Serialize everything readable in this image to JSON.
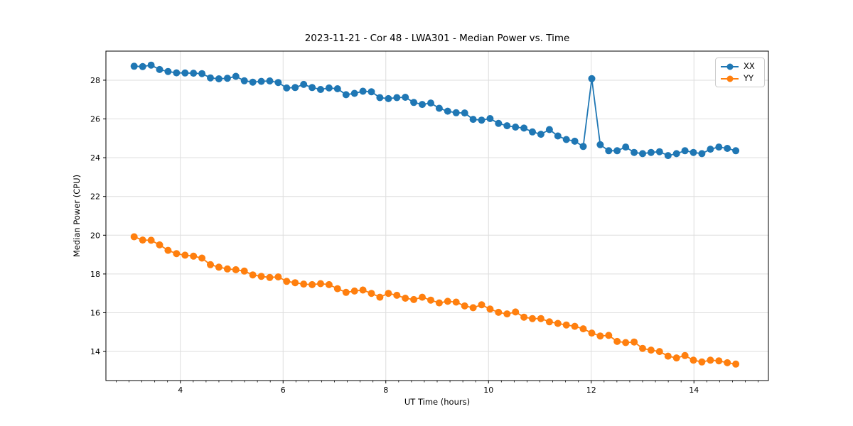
{
  "chart_data": {
    "type": "line",
    "title": "2023-11-21 - Cor 48 - LWA301 - Median Power vs. Time",
    "xlabel": "UT Time (hours)",
    "ylabel": "Median Power (CPU)",
    "xlim": [
      2.55,
      15.45
    ],
    "ylim": [
      12.5,
      29.5
    ],
    "x_ticks": [
      4,
      6,
      8,
      10,
      12,
      14
    ],
    "x_minor_tick_step": 0.25,
    "y_ticks": [
      14,
      16,
      18,
      20,
      22,
      24,
      26,
      28
    ],
    "grid": true,
    "grid_color": "#dedede",
    "legend": {
      "position": "upper-right",
      "entries": [
        "XX",
        "YY"
      ]
    },
    "x_start": 3.1,
    "x_step": 0.165,
    "series": [
      {
        "name": "XX",
        "color": "#1f77b4",
        "marker": "circle",
        "values": [
          28.72,
          28.7,
          28.78,
          28.55,
          28.45,
          28.38,
          28.37,
          28.36,
          28.34,
          28.12,
          28.07,
          28.1,
          28.2,
          27.97,
          27.9,
          27.94,
          27.96,
          27.88,
          27.6,
          27.62,
          27.78,
          27.62,
          27.52,
          27.6,
          27.56,
          27.25,
          27.32,
          27.43,
          27.4,
          27.1,
          27.05,
          27.1,
          27.12,
          26.85,
          26.75,
          26.82,
          26.55,
          26.4,
          26.32,
          26.31,
          25.98,
          25.94,
          26.02,
          25.77,
          25.65,
          25.58,
          25.53,
          25.33,
          25.21,
          25.45,
          25.12,
          24.94,
          24.85,
          24.58,
          28.08,
          24.67,
          24.36,
          24.36,
          24.55,
          24.27,
          24.21,
          24.27,
          24.31,
          24.11,
          24.21,
          24.36,
          24.27,
          24.21,
          24.44,
          24.55,
          24.48,
          24.36
        ]
      },
      {
        "name": "YY",
        "color": "#ff7f0e",
        "marker": "circle",
        "values": [
          19.92,
          19.75,
          19.74,
          19.5,
          19.22,
          19.05,
          18.97,
          18.92,
          18.82,
          18.48,
          18.35,
          18.26,
          18.22,
          18.15,
          17.95,
          17.88,
          17.82,
          17.85,
          17.62,
          17.55,
          17.48,
          17.45,
          17.5,
          17.45,
          17.24,
          17.05,
          17.12,
          17.17,
          17.0,
          16.8,
          17.0,
          16.9,
          16.75,
          16.68,
          16.8,
          16.65,
          16.51,
          16.59,
          16.55,
          16.35,
          16.26,
          16.41,
          16.19,
          16.02,
          15.94,
          16.04,
          15.77,
          15.7,
          15.7,
          15.53,
          15.45,
          15.37,
          15.3,
          15.17,
          14.95,
          14.8,
          14.83,
          14.52,
          14.46,
          14.49,
          14.16,
          14.07,
          14.0,
          13.76,
          13.67,
          13.79,
          13.55,
          13.46,
          13.55,
          13.52,
          13.42,
          13.35
        ]
      }
    ]
  }
}
